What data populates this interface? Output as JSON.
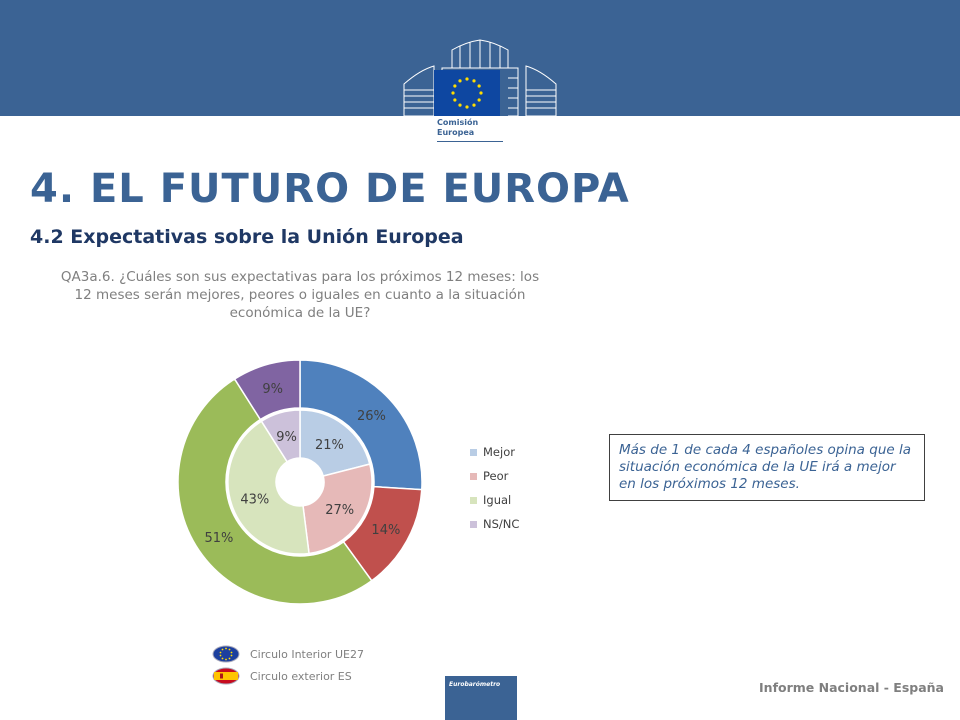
{
  "header": {
    "logo_line1": "Comisión",
    "logo_line2": "Europea",
    "title": "4. EL FUTURO DE EUROPA",
    "subtitle": "4.2 Expectativas sobre la Unión Europea"
  },
  "question": "QA3a.6. ¿Cuáles son sus expectativas para los próximos 12 meses: los 12 meses serán mejores, peores o iguales en cuanto a la situación económica de la UE?",
  "chart_data": {
    "type": "pie",
    "categories": [
      "Mejor",
      "Peor",
      "Igual",
      "NS/NC"
    ],
    "colors": [
      "#4f81bd",
      "#c0504d",
      "#9bbb59",
      "#8064a2"
    ],
    "inner_colors": [
      "#b9cde5",
      "#e6b9b8",
      "#d7e4bd",
      "#ccc1da"
    ],
    "series": [
      {
        "name": "Circulo Interior UE27",
        "values": [
          21,
          27,
          43,
          9
        ],
        "labels": [
          "21%",
          "27%",
          "43%",
          "9%"
        ]
      },
      {
        "name": "Circulo exterior ES",
        "values": [
          26,
          14,
          51,
          9
        ],
        "labels": [
          "26%",
          "14%",
          "51%",
          "9%"
        ]
      }
    ]
  },
  "callout": "Más de 1 de cada 4 españoles opina que la situación económica de la UE irá a mejor en los próximos 12 meses.",
  "circle_legend": {
    "inner_label": "Circulo Interior UE27",
    "outer_label": "Circulo exterior ES"
  },
  "eb_logo": "Eurobarómetro",
  "footer": "Informe Nacional - España"
}
